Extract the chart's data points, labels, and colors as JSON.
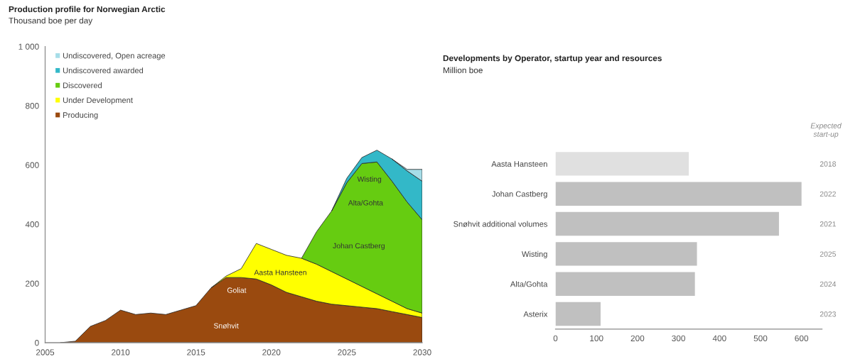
{
  "chart_data": [
    {
      "type": "area",
      "title": "Production profile for Norwegian Arctic",
      "subtitle": "Thousand boe per day",
      "stacked": true,
      "x": [
        2006,
        2007,
        2008,
        2009,
        2010,
        2011,
        2012,
        2013,
        2014,
        2015,
        2016,
        2017,
        2018,
        2019,
        2020,
        2021,
        2022,
        2023,
        2024,
        2025,
        2026,
        2027,
        2028,
        2029,
        2030
      ],
      "series": [
        {
          "name": "Producing",
          "color": "#9a4a0f",
          "values": [
            0,
            5,
            55,
            75,
            110,
            95,
            100,
            95,
            110,
            125,
            185,
            220,
            220,
            215,
            195,
            170,
            155,
            140,
            130,
            125,
            120,
            115,
            105,
            95,
            85
          ]
        },
        {
          "name": "Under Development",
          "color": "#ffff00",
          "values": [
            null,
            null,
            null,
            null,
            null,
            null,
            null,
            null,
            null,
            null,
            0,
            5,
            30,
            120,
            120,
            125,
            130,
            125,
            110,
            90,
            70,
            50,
            35,
            20,
            15
          ]
        },
        {
          "name": "Discovered",
          "color": "#66cc11",
          "values": [
            null,
            null,
            null,
            null,
            null,
            null,
            null,
            null,
            null,
            null,
            null,
            null,
            null,
            null,
            null,
            null,
            0,
            110,
            205,
            325,
            415,
            445,
            405,
            360,
            315
          ]
        },
        {
          "name": "Undiscovered awarded",
          "color": "#33b8c8",
          "values": [
            null,
            null,
            null,
            null,
            null,
            null,
            null,
            null,
            null,
            null,
            null,
            null,
            null,
            null,
            null,
            null,
            null,
            null,
            0,
            15,
            20,
            40,
            75,
            105,
            130
          ]
        },
        {
          "name": "Undiscovered, Open acreage",
          "color": "#a6dde8",
          "values": [
            null,
            null,
            null,
            null,
            null,
            null,
            null,
            null,
            null,
            null,
            null,
            null,
            null,
            null,
            null,
            null,
            null,
            null,
            null,
            null,
            null,
            null,
            0,
            5,
            40
          ]
        }
      ],
      "xlim": [
        2005,
        2030
      ],
      "xticks": [
        2005,
        2010,
        2015,
        2020,
        2025,
        2030
      ],
      "ylim": [
        0,
        1000
      ],
      "yticks": [
        0,
        200,
        400,
        600,
        800,
        {
          "value": 1000,
          "label": "1 000"
        }
      ],
      "legend": "top left",
      "grid": false,
      "annotations": [
        "Snøhvit",
        "Goliat",
        "Aasta Hansteen",
        "Johan Castberg",
        "Alta/Gohta",
        "Wisting"
      ]
    },
    {
      "type": "bar",
      "orientation": "horizontal",
      "title": "Developments by Operator, startup year and resources",
      "subtitle": "Million boe",
      "categories": [
        "Aasta Hansteen",
        "Johan Castberg",
        "Snøhvit additional volumes",
        "Wisting",
        "Alta/Gohta",
        "Asterix"
      ],
      "values": [
        325,
        600,
        545,
        345,
        340,
        110
      ],
      "colors": [
        "#e0e0e0",
        "#c0c0c0",
        "#c0c0c0",
        "#c0c0c0",
        "#c0c0c0",
        "#c0c0c0"
      ],
      "xlim": [
        0,
        650
      ],
      "xticks": [
        0,
        100,
        200,
        300,
        400,
        500,
        600
      ],
      "grid": false,
      "y2label": "Expected start-up",
      "y2_categories": [
        "2018",
        "2022",
        "2021",
        "2025",
        "2024",
        "2023"
      ]
    }
  ]
}
